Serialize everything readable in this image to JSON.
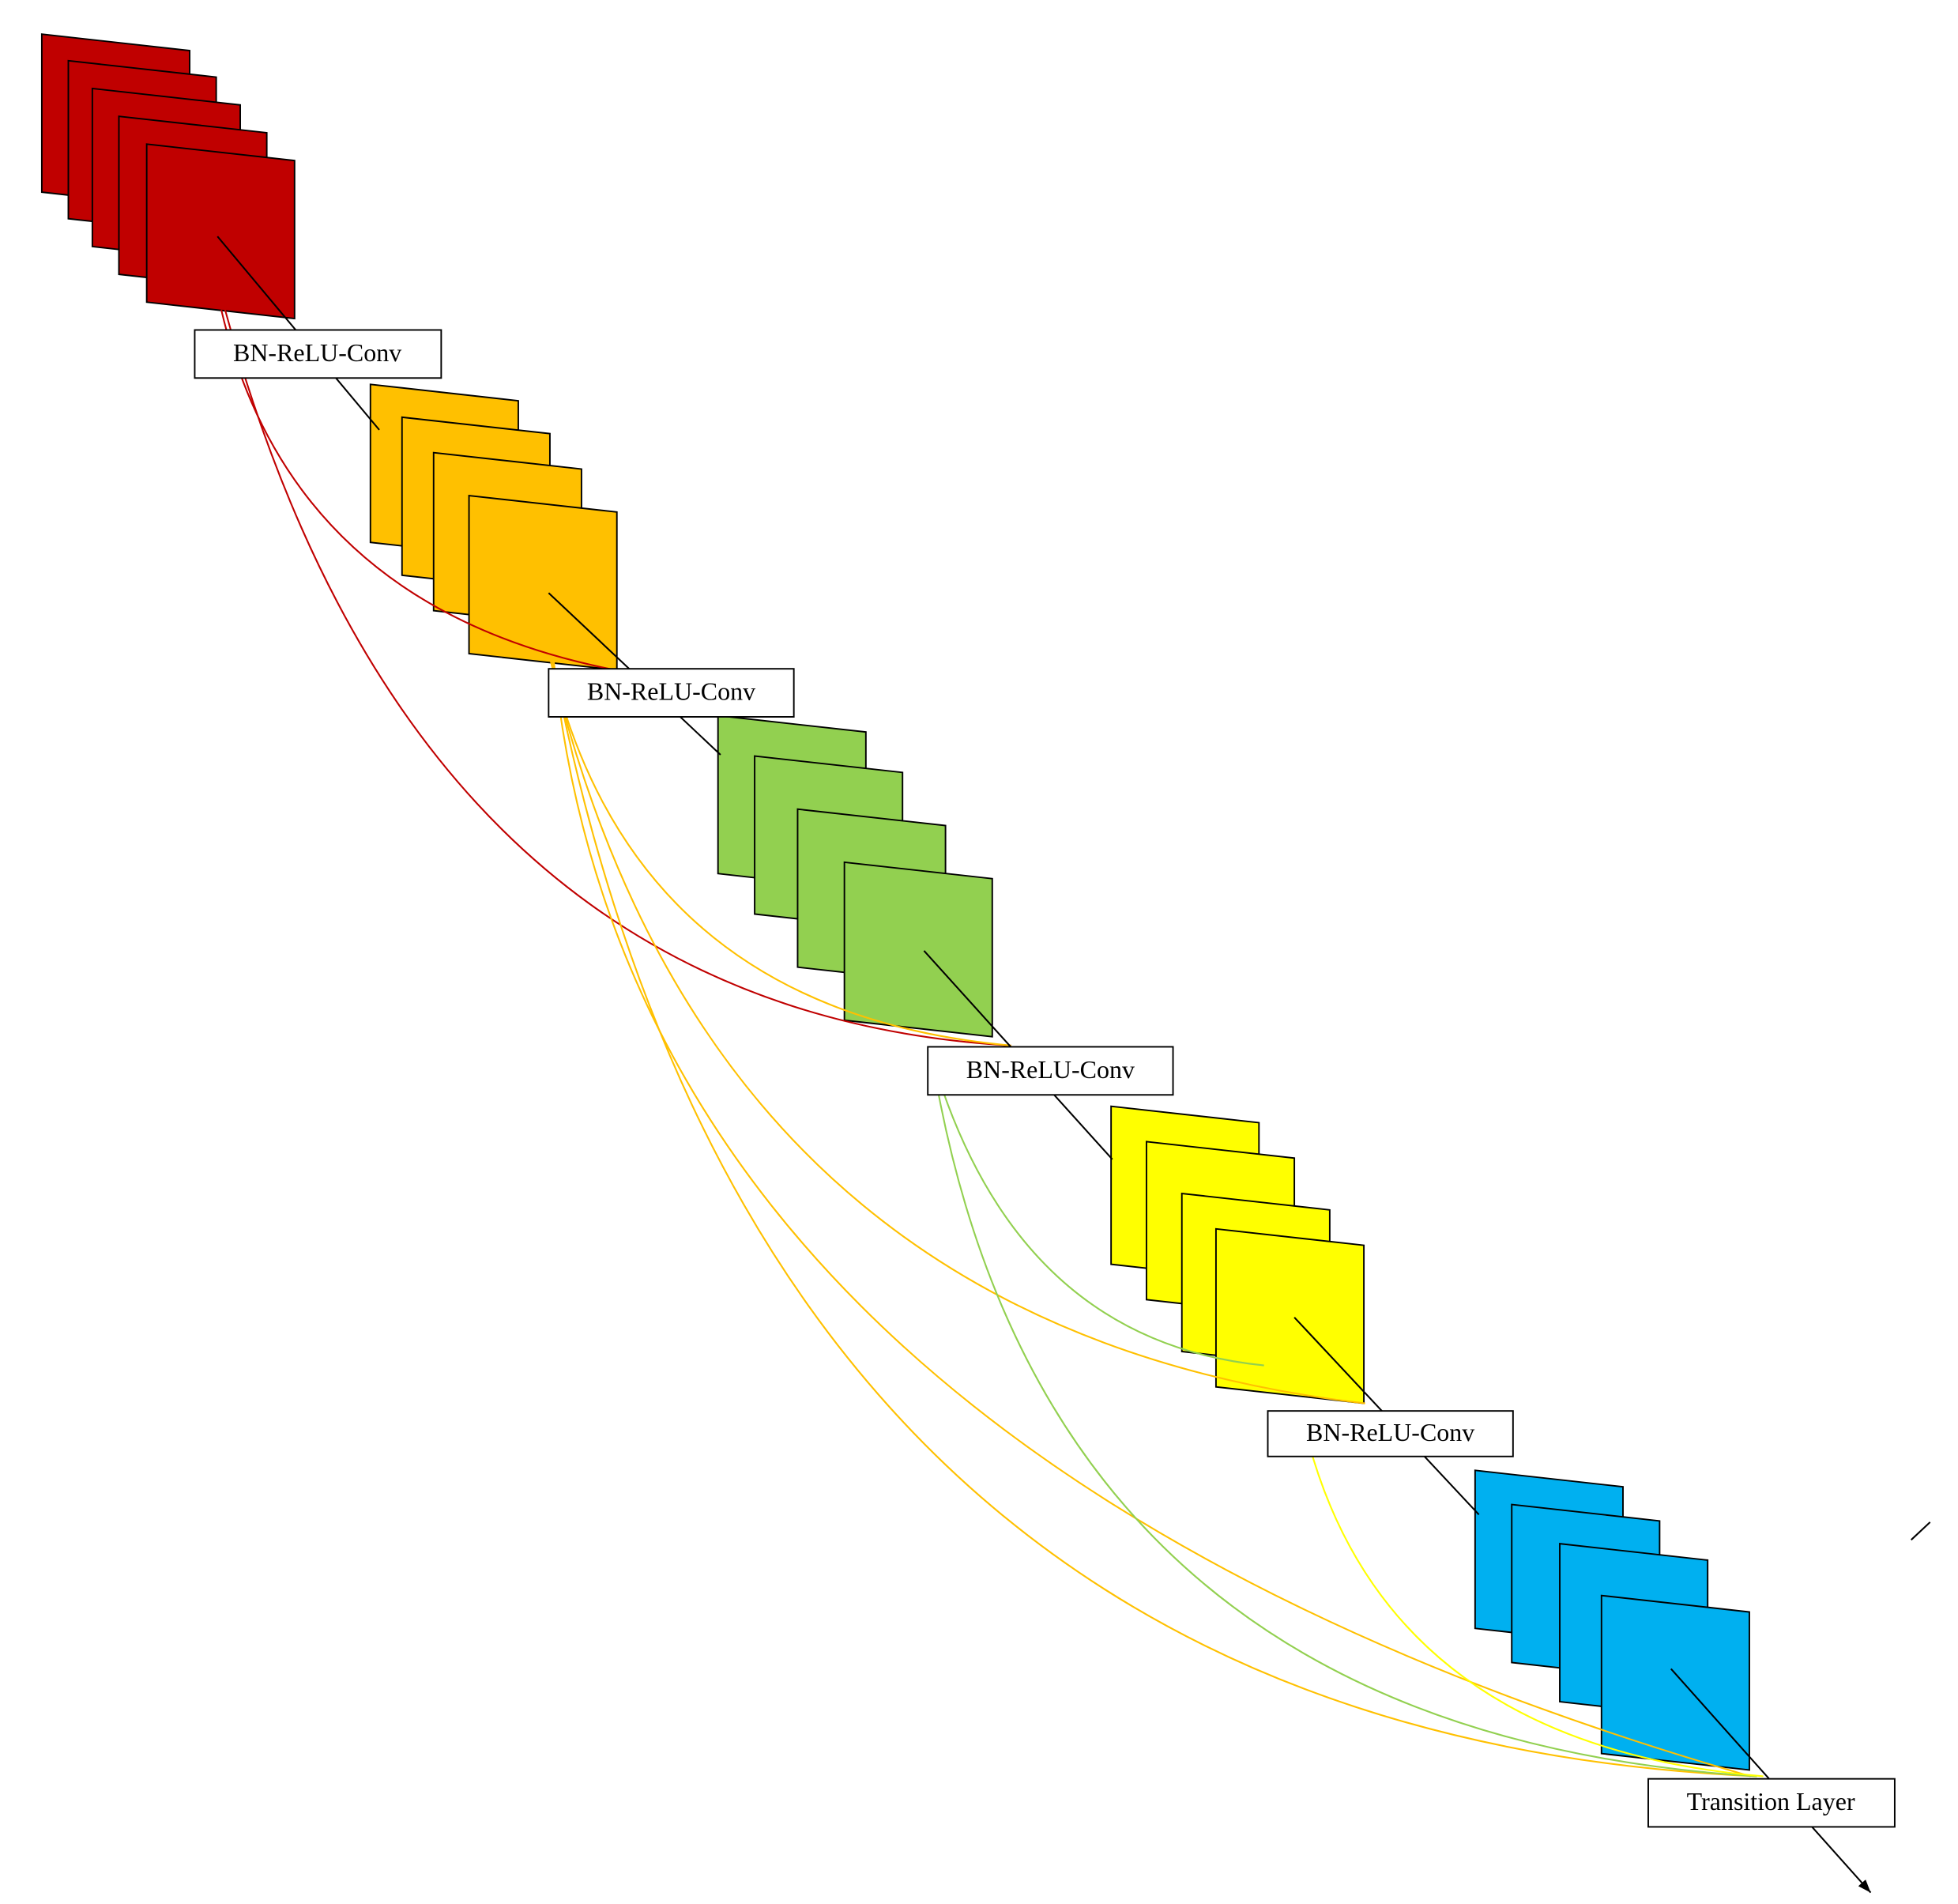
{
  "nodes": [
    {
      "label": "BN-ReLU-Conv"
    },
    {
      "label": "BN-ReLU-Conv"
    },
    {
      "label": "BN-ReLU-Conv"
    },
    {
      "label": "BN-ReLU-Conv"
    },
    {
      "label": "Transition Layer"
    }
  ]
}
